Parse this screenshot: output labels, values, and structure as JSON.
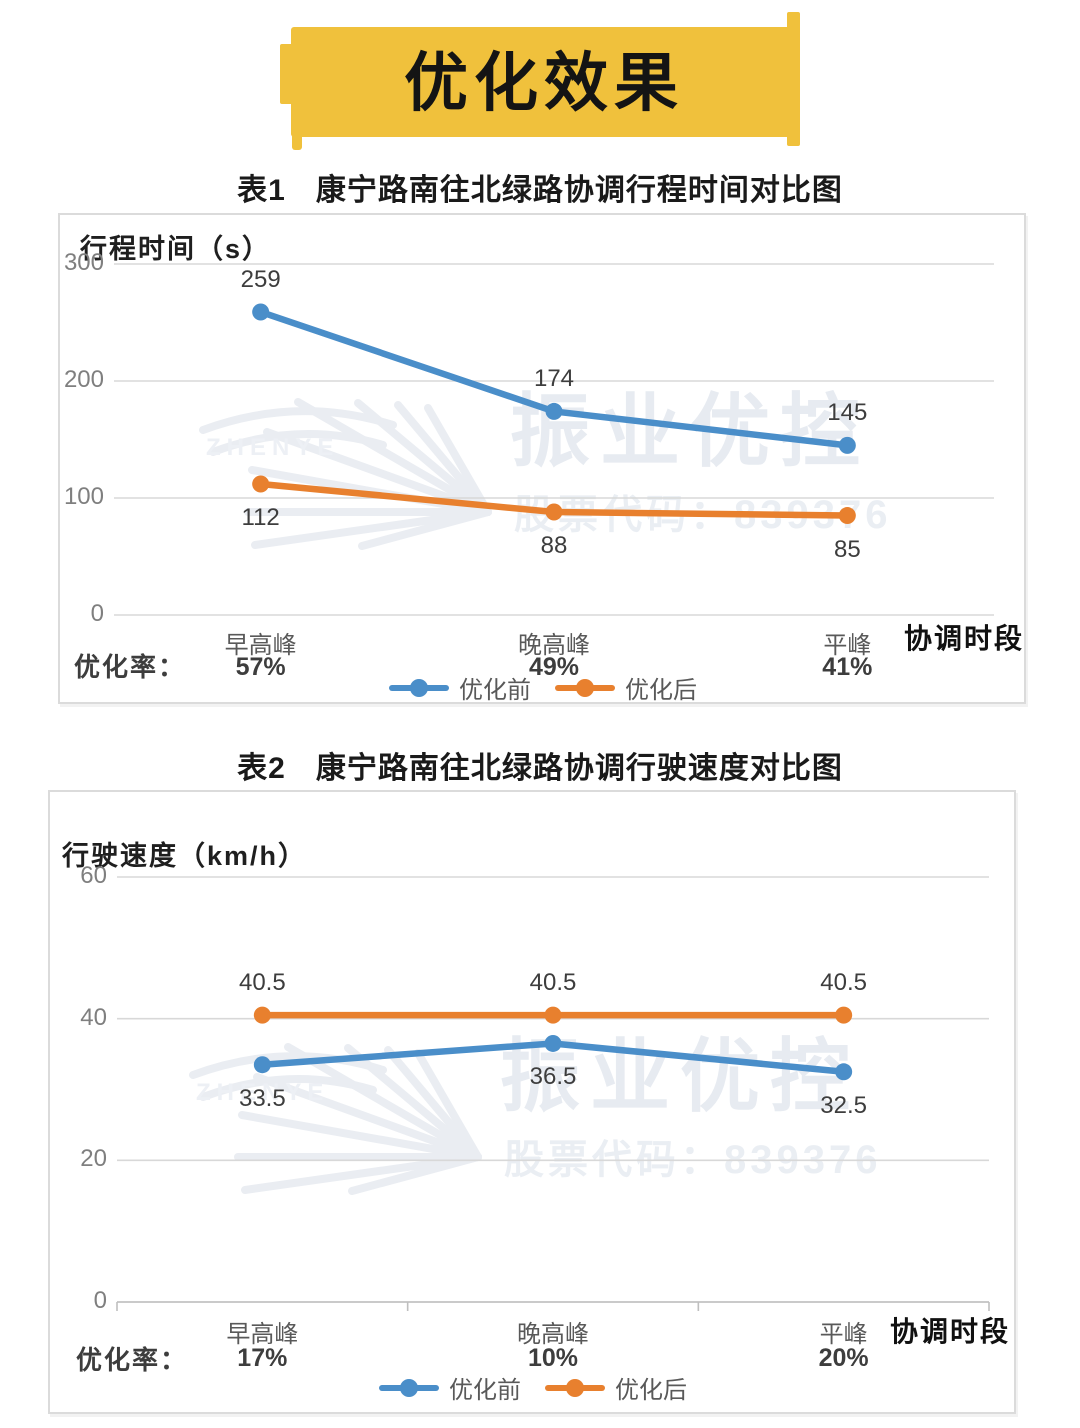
{
  "page": {
    "banner_title": "优化效果"
  },
  "watermark": {
    "brand": "振业优控",
    "latin": "ZHENYE",
    "code": "股票代码：839376"
  },
  "chart_data": [
    {
      "type": "line",
      "table_label": "表1",
      "title": "康宁路南往北绿路协调行程时间对比图",
      "y_axis_title": "行程时间（s）",
      "x_axis_title": "协调时段",
      "rate_caption": "优化率：",
      "categories": [
        "早高峰",
        "晚高峰",
        "平峰"
      ],
      "optimization_rates": [
        "57%",
        "49%",
        "41%"
      ],
      "ylim": [
        0,
        300
      ],
      "yticks": [
        300,
        200,
        100,
        0
      ],
      "grid": "horizontal",
      "legend_position": "bottom",
      "series": [
        {
          "name": "优化前",
          "color": "#4A8EC9",
          "values": [
            259,
            174,
            145
          ],
          "label_position": "above"
        },
        {
          "name": "优化后",
          "color": "#E8802E",
          "values": [
            112,
            88,
            85
          ],
          "label_position": "below"
        }
      ]
    },
    {
      "type": "line",
      "table_label": "表2",
      "title": "康宁路南往北绿路协调行驶速度对比图",
      "y_axis_title": "行驶速度（km/h）",
      "x_axis_title": "协调时段",
      "rate_caption": "优化率：",
      "categories": [
        "早高峰",
        "晚高峰",
        "平峰"
      ],
      "optimization_rates": [
        "17%",
        "10%",
        "20%"
      ],
      "ylim": [
        0,
        60
      ],
      "yticks": [
        60,
        40,
        20,
        0
      ],
      "grid": "horizontal",
      "legend_position": "bottom",
      "series": [
        {
          "name": "优化前",
          "color": "#4A8EC9",
          "values": [
            33.5,
            36.5,
            32.5
          ],
          "label_position": "below"
        },
        {
          "name": "优化后",
          "color": "#E8802E",
          "values": [
            40.5,
            40.5,
            40.5
          ],
          "label_position": "above"
        }
      ]
    }
  ]
}
